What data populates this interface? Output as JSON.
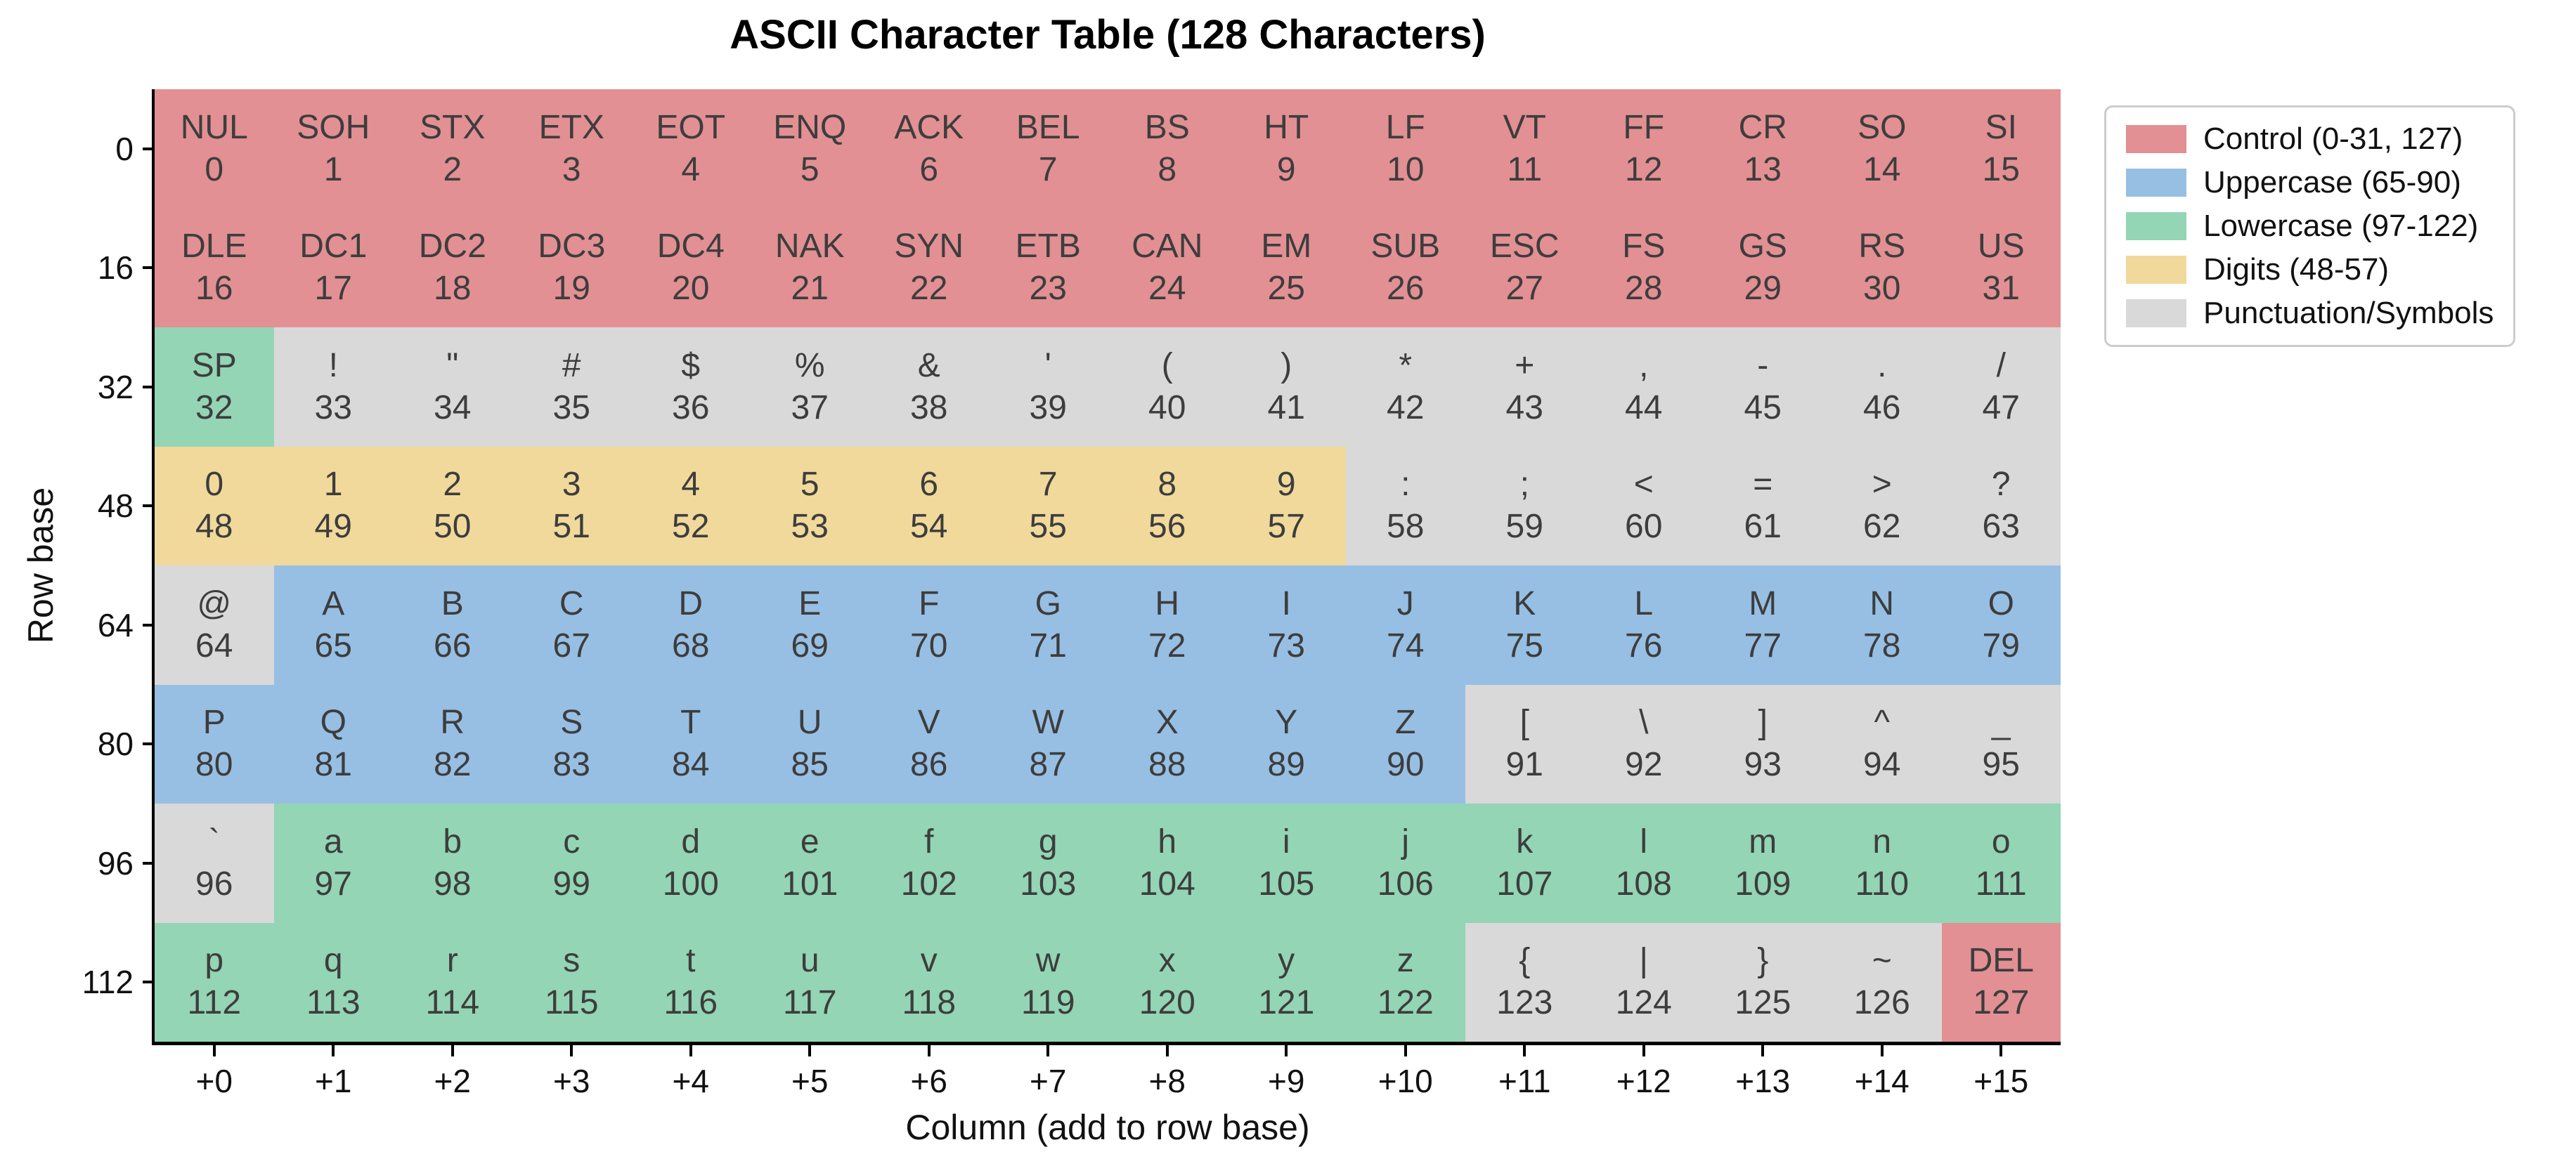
{
  "chart_data": {
    "type": "table",
    "title": "ASCII Character Table (128 Characters)",
    "xlabel": "Column (add to row base)",
    "ylabel": "Row base",
    "x_tick_labels": [
      "+0",
      "+1",
      "+2",
      "+3",
      "+4",
      "+5",
      "+6",
      "+7",
      "+8",
      "+9",
      "+10",
      "+11",
      "+12",
      "+13",
      "+14",
      "+15"
    ],
    "y_tick_labels": [
      "0",
      "16",
      "32",
      "48",
      "64",
      "80",
      "96",
      "112"
    ],
    "grid": "off",
    "legend_position": "upper right, outside axes",
    "palette": {
      "control": "#e29093",
      "uppercase": "#97bfe3",
      "lowercase": "#93d5b4",
      "digits": "#f0d99b",
      "punct": "#d9d9d9",
      "space": "#93d5b4"
    },
    "legend": [
      {
        "label": "Control (0-31, 127)",
        "cat": "control"
      },
      {
        "label": "Uppercase (65-90)",
        "cat": "uppercase"
      },
      {
        "label": "Lowercase (97-122)",
        "cat": "lowercase"
      },
      {
        "label": "Digits (48-57)",
        "cat": "digits"
      },
      {
        "label": "Punctuation/Symbols",
        "cat": "punct"
      }
    ],
    "rows": [
      {
        "base": 0,
        "cells": [
          {
            "ch": "NUL",
            "code": 0,
            "cat": "control"
          },
          {
            "ch": "SOH",
            "code": 1,
            "cat": "control"
          },
          {
            "ch": "STX",
            "code": 2,
            "cat": "control"
          },
          {
            "ch": "ETX",
            "code": 3,
            "cat": "control"
          },
          {
            "ch": "EOT",
            "code": 4,
            "cat": "control"
          },
          {
            "ch": "ENQ",
            "code": 5,
            "cat": "control"
          },
          {
            "ch": "ACK",
            "code": 6,
            "cat": "control"
          },
          {
            "ch": "BEL",
            "code": 7,
            "cat": "control"
          },
          {
            "ch": "BS",
            "code": 8,
            "cat": "control"
          },
          {
            "ch": "HT",
            "code": 9,
            "cat": "control"
          },
          {
            "ch": "LF",
            "code": 10,
            "cat": "control"
          },
          {
            "ch": "VT",
            "code": 11,
            "cat": "control"
          },
          {
            "ch": "FF",
            "code": 12,
            "cat": "control"
          },
          {
            "ch": "CR",
            "code": 13,
            "cat": "control"
          },
          {
            "ch": "SO",
            "code": 14,
            "cat": "control"
          },
          {
            "ch": "SI",
            "code": 15,
            "cat": "control"
          }
        ]
      },
      {
        "base": 16,
        "cells": [
          {
            "ch": "DLE",
            "code": 16,
            "cat": "control"
          },
          {
            "ch": "DC1",
            "code": 17,
            "cat": "control"
          },
          {
            "ch": "DC2",
            "code": 18,
            "cat": "control"
          },
          {
            "ch": "DC3",
            "code": 19,
            "cat": "control"
          },
          {
            "ch": "DC4",
            "code": 20,
            "cat": "control"
          },
          {
            "ch": "NAK",
            "code": 21,
            "cat": "control"
          },
          {
            "ch": "SYN",
            "code": 22,
            "cat": "control"
          },
          {
            "ch": "ETB",
            "code": 23,
            "cat": "control"
          },
          {
            "ch": "CAN",
            "code": 24,
            "cat": "control"
          },
          {
            "ch": "EM",
            "code": 25,
            "cat": "control"
          },
          {
            "ch": "SUB",
            "code": 26,
            "cat": "control"
          },
          {
            "ch": "ESC",
            "code": 27,
            "cat": "control"
          },
          {
            "ch": "FS",
            "code": 28,
            "cat": "control"
          },
          {
            "ch": "GS",
            "code": 29,
            "cat": "control"
          },
          {
            "ch": "RS",
            "code": 30,
            "cat": "control"
          },
          {
            "ch": "US",
            "code": 31,
            "cat": "control"
          }
        ]
      },
      {
        "base": 32,
        "cells": [
          {
            "ch": "SP",
            "code": 32,
            "cat": "space"
          },
          {
            "ch": "!",
            "code": 33,
            "cat": "punct"
          },
          {
            "ch": "\"",
            "code": 34,
            "cat": "punct"
          },
          {
            "ch": "#",
            "code": 35,
            "cat": "punct"
          },
          {
            "ch": "$",
            "code": 36,
            "cat": "punct"
          },
          {
            "ch": "%",
            "code": 37,
            "cat": "punct"
          },
          {
            "ch": "&",
            "code": 38,
            "cat": "punct"
          },
          {
            "ch": "'",
            "code": 39,
            "cat": "punct"
          },
          {
            "ch": "(",
            "code": 40,
            "cat": "punct"
          },
          {
            "ch": ")",
            "code": 41,
            "cat": "punct"
          },
          {
            "ch": "*",
            "code": 42,
            "cat": "punct"
          },
          {
            "ch": "+",
            "code": 43,
            "cat": "punct"
          },
          {
            "ch": ",",
            "code": 44,
            "cat": "punct"
          },
          {
            "ch": "-",
            "code": 45,
            "cat": "punct"
          },
          {
            "ch": ".",
            "code": 46,
            "cat": "punct"
          },
          {
            "ch": "/",
            "code": 47,
            "cat": "punct"
          }
        ]
      },
      {
        "base": 48,
        "cells": [
          {
            "ch": "0",
            "code": 48,
            "cat": "digits"
          },
          {
            "ch": "1",
            "code": 49,
            "cat": "digits"
          },
          {
            "ch": "2",
            "code": 50,
            "cat": "digits"
          },
          {
            "ch": "3",
            "code": 51,
            "cat": "digits"
          },
          {
            "ch": "4",
            "code": 52,
            "cat": "digits"
          },
          {
            "ch": "5",
            "code": 53,
            "cat": "digits"
          },
          {
            "ch": "6",
            "code": 54,
            "cat": "digits"
          },
          {
            "ch": "7",
            "code": 55,
            "cat": "digits"
          },
          {
            "ch": "8",
            "code": 56,
            "cat": "digits"
          },
          {
            "ch": "9",
            "code": 57,
            "cat": "digits"
          },
          {
            "ch": ":",
            "code": 58,
            "cat": "punct"
          },
          {
            "ch": ";",
            "code": 59,
            "cat": "punct"
          },
          {
            "ch": "<",
            "code": 60,
            "cat": "punct"
          },
          {
            "ch": "=",
            "code": 61,
            "cat": "punct"
          },
          {
            "ch": ">",
            "code": 62,
            "cat": "punct"
          },
          {
            "ch": "?",
            "code": 63,
            "cat": "punct"
          }
        ]
      },
      {
        "base": 64,
        "cells": [
          {
            "ch": "@",
            "code": 64,
            "cat": "punct"
          },
          {
            "ch": "A",
            "code": 65,
            "cat": "uppercase"
          },
          {
            "ch": "B",
            "code": 66,
            "cat": "uppercase"
          },
          {
            "ch": "C",
            "code": 67,
            "cat": "uppercase"
          },
          {
            "ch": "D",
            "code": 68,
            "cat": "uppercase"
          },
          {
            "ch": "E",
            "code": 69,
            "cat": "uppercase"
          },
          {
            "ch": "F",
            "code": 70,
            "cat": "uppercase"
          },
          {
            "ch": "G",
            "code": 71,
            "cat": "uppercase"
          },
          {
            "ch": "H",
            "code": 72,
            "cat": "uppercase"
          },
          {
            "ch": "I",
            "code": 73,
            "cat": "uppercase"
          },
          {
            "ch": "J",
            "code": 74,
            "cat": "uppercase"
          },
          {
            "ch": "K",
            "code": 75,
            "cat": "uppercase"
          },
          {
            "ch": "L",
            "code": 76,
            "cat": "uppercase"
          },
          {
            "ch": "M",
            "code": 77,
            "cat": "uppercase"
          },
          {
            "ch": "N",
            "code": 78,
            "cat": "uppercase"
          },
          {
            "ch": "O",
            "code": 79,
            "cat": "uppercase"
          }
        ]
      },
      {
        "base": 80,
        "cells": [
          {
            "ch": "P",
            "code": 80,
            "cat": "uppercase"
          },
          {
            "ch": "Q",
            "code": 81,
            "cat": "uppercase"
          },
          {
            "ch": "R",
            "code": 82,
            "cat": "uppercase"
          },
          {
            "ch": "S",
            "code": 83,
            "cat": "uppercase"
          },
          {
            "ch": "T",
            "code": 84,
            "cat": "uppercase"
          },
          {
            "ch": "U",
            "code": 85,
            "cat": "uppercase"
          },
          {
            "ch": "V",
            "code": 86,
            "cat": "uppercase"
          },
          {
            "ch": "W",
            "code": 87,
            "cat": "uppercase"
          },
          {
            "ch": "X",
            "code": 88,
            "cat": "uppercase"
          },
          {
            "ch": "Y",
            "code": 89,
            "cat": "uppercase"
          },
          {
            "ch": "Z",
            "code": 90,
            "cat": "uppercase"
          },
          {
            "ch": "[",
            "code": 91,
            "cat": "punct"
          },
          {
            "ch": "\\",
            "code": 92,
            "cat": "punct"
          },
          {
            "ch": "]",
            "code": 93,
            "cat": "punct"
          },
          {
            "ch": "^",
            "code": 94,
            "cat": "punct"
          },
          {
            "ch": "_",
            "code": 95,
            "cat": "punct"
          }
        ]
      },
      {
        "base": 96,
        "cells": [
          {
            "ch": "`",
            "code": 96,
            "cat": "punct"
          },
          {
            "ch": "a",
            "code": 97,
            "cat": "lowercase"
          },
          {
            "ch": "b",
            "code": 98,
            "cat": "lowercase"
          },
          {
            "ch": "c",
            "code": 99,
            "cat": "lowercase"
          },
          {
            "ch": "d",
            "code": 100,
            "cat": "lowercase"
          },
          {
            "ch": "e",
            "code": 101,
            "cat": "lowercase"
          },
          {
            "ch": "f",
            "code": 102,
            "cat": "lowercase"
          },
          {
            "ch": "g",
            "code": 103,
            "cat": "lowercase"
          },
          {
            "ch": "h",
            "code": 104,
            "cat": "lowercase"
          },
          {
            "ch": "i",
            "code": 105,
            "cat": "lowercase"
          },
          {
            "ch": "j",
            "code": 106,
            "cat": "lowercase"
          },
          {
            "ch": "k",
            "code": 107,
            "cat": "lowercase"
          },
          {
            "ch": "l",
            "code": 108,
            "cat": "lowercase"
          },
          {
            "ch": "m",
            "code": 109,
            "cat": "lowercase"
          },
          {
            "ch": "n",
            "code": 110,
            "cat": "lowercase"
          },
          {
            "ch": "o",
            "code": 111,
            "cat": "lowercase"
          }
        ]
      },
      {
        "base": 112,
        "cells": [
          {
            "ch": "p",
            "code": 112,
            "cat": "lowercase"
          },
          {
            "ch": "q",
            "code": 113,
            "cat": "lowercase"
          },
          {
            "ch": "r",
            "code": 114,
            "cat": "lowercase"
          },
          {
            "ch": "s",
            "code": 115,
            "cat": "lowercase"
          },
          {
            "ch": "t",
            "code": 116,
            "cat": "lowercase"
          },
          {
            "ch": "u",
            "code": 117,
            "cat": "lowercase"
          },
          {
            "ch": "v",
            "code": 118,
            "cat": "lowercase"
          },
          {
            "ch": "w",
            "code": 119,
            "cat": "lowercase"
          },
          {
            "ch": "x",
            "code": 120,
            "cat": "lowercase"
          },
          {
            "ch": "y",
            "code": 121,
            "cat": "lowercase"
          },
          {
            "ch": "z",
            "code": 122,
            "cat": "lowercase"
          },
          {
            "ch": "{",
            "code": 123,
            "cat": "punct"
          },
          {
            "ch": "|",
            "code": 124,
            "cat": "punct"
          },
          {
            "ch": "}",
            "code": 125,
            "cat": "punct"
          },
          {
            "ch": "~",
            "code": 126,
            "cat": "punct"
          },
          {
            "ch": "DEL",
            "code": 127,
            "cat": "control"
          }
        ]
      }
    ]
  }
}
